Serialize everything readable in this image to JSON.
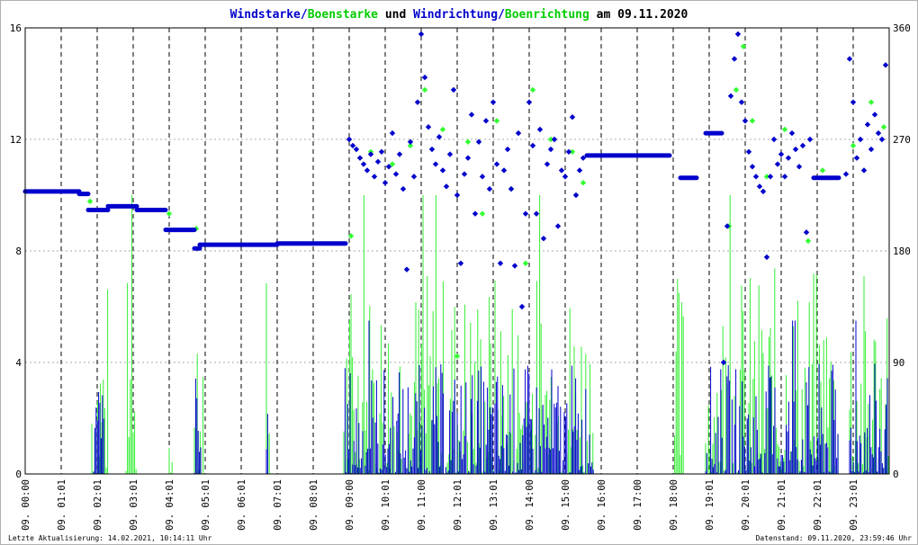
{
  "chart_data": {
    "type": "line",
    "title_parts": [
      {
        "text": "Windstarke",
        "color": "#0000cc"
      },
      {
        "text": "/",
        "color": "#0000cc"
      },
      {
        "text": "Boenstarke",
        "color": "#00cc00"
      },
      {
        "text": " und ",
        "color": "#000000"
      },
      {
        "text": "Windrichtung",
        "color": "#0000cc"
      },
      {
        "text": "/",
        "color": "#0000cc"
      },
      {
        "text": "Boenrichtung",
        "color": "#00cc00"
      },
      {
        "text": " am 09.11.2020",
        "color": "#000000"
      }
    ],
    "x_tick_labels": [
      "09. 00:00",
      "09. 01:01",
      "09. 02:01",
      "09. 03:01",
      "09. 04:01",
      "09. 05:01",
      "09. 06:01",
      "09. 07:01",
      "09. 08:01",
      "09. 09:00",
      "09. 10:01",
      "09. 11:00",
      "09. 12:01",
      "09. 13:01",
      "09. 14:00",
      "09. 15:00",
      "09. 16:00",
      "09. 17:00",
      "09. 18:00",
      "09. 19:01",
      "09. 20:01",
      "09. 21:01",
      "09. 22:01",
      "09. 23:01"
    ],
    "x_range_hours": [
      0,
      24
    ],
    "y_left": {
      "ticks": [
        "0",
        "4",
        "8",
        "12",
        "16"
      ],
      "range": [
        0,
        16
      ]
    },
    "y_right": {
      "ticks": [
        "0",
        "90",
        "180",
        "270",
        "360"
      ],
      "range": [
        0,
        360
      ]
    },
    "grid": {
      "horizontal": "dotted",
      "vertical": "dashed"
    },
    "series": [
      {
        "kind": "direction",
        "color": "#0000cc",
        "axis": "right",
        "segments": [
          {
            "from_h": 0.0,
            "to_h": 1.5,
            "value": 228
          },
          {
            "from_h": 1.5,
            "to_h": 1.75,
            "value": 226
          },
          {
            "from_h": 1.75,
            "to_h": 2.3,
            "value": 213
          },
          {
            "from_h": 2.3,
            "to_h": 3.1,
            "value": 216
          },
          {
            "from_h": 3.1,
            "to_h": 3.9,
            "value": 213
          },
          {
            "from_h": 3.9,
            "to_h": 4.7,
            "value": 197
          },
          {
            "from_h": 4.7,
            "to_h": 4.85,
            "value": 182
          },
          {
            "from_h": 4.85,
            "to_h": 7.0,
            "value": 185
          },
          {
            "from_h": 7.0,
            "to_h": 8.9,
            "value": 186
          },
          {
            "from_h": 15.6,
            "to_h": 17.9,
            "value": 257
          },
          {
            "from_h": 18.2,
            "to_h": 18.65,
            "value": 239
          },
          {
            "from_h": 18.9,
            "to_h": 19.35,
            "value": 275
          },
          {
            "from_h": 21.9,
            "to_h": 22.6,
            "value": 239
          }
        ],
        "scatter": [
          {
            "h": 9.0,
            "value": 270
          },
          {
            "h": 9.1,
            "value": 265
          },
          {
            "h": 9.2,
            "value": 262
          },
          {
            "h": 9.3,
            "value": 255
          },
          {
            "h": 9.4,
            "value": 250
          },
          {
            "h": 9.5,
            "value": 245
          },
          {
            "h": 9.6,
            "value": 258
          },
          {
            "h": 9.7,
            "value": 240
          },
          {
            "h": 9.8,
            "value": 252
          },
          {
            "h": 9.9,
            "value": 260
          },
          {
            "h": 10.0,
            "value": 235
          },
          {
            "h": 10.1,
            "value": 248
          },
          {
            "h": 10.2,
            "value": 275
          },
          {
            "h": 10.3,
            "value": 242
          },
          {
            "h": 10.4,
            "value": 258
          },
          {
            "h": 10.5,
            "value": 230
          },
          {
            "h": 10.6,
            "value": 165
          },
          {
            "h": 10.7,
            "value": 268
          },
          {
            "h": 10.8,
            "value": 240
          },
          {
            "h": 10.9,
            "value": 300
          },
          {
            "h": 11.0,
            "value": 355
          },
          {
            "h": 11.1,
            "value": 320
          },
          {
            "h": 11.2,
            "value": 280
          },
          {
            "h": 11.3,
            "value": 262
          },
          {
            "h": 11.4,
            "value": 250
          },
          {
            "h": 11.5,
            "value": 272
          },
          {
            "h": 11.6,
            "value": 245
          },
          {
            "h": 11.7,
            "value": 232
          },
          {
            "h": 11.8,
            "value": 258
          },
          {
            "h": 11.9,
            "value": 310
          },
          {
            "h": 12.0,
            "value": 225
          },
          {
            "h": 12.1,
            "value": 170
          },
          {
            "h": 12.2,
            "value": 242
          },
          {
            "h": 12.3,
            "value": 255
          },
          {
            "h": 12.4,
            "value": 290
          },
          {
            "h": 12.5,
            "value": 210
          },
          {
            "h": 12.6,
            "value": 268
          },
          {
            "h": 12.7,
            "value": 240
          },
          {
            "h": 12.8,
            "value": 285
          },
          {
            "h": 12.9,
            "value": 230
          },
          {
            "h": 13.0,
            "value": 300
          },
          {
            "h": 13.1,
            "value": 250
          },
          {
            "h": 13.2,
            "value": 170
          },
          {
            "h": 13.3,
            "value": 245
          },
          {
            "h": 13.4,
            "value": 262
          },
          {
            "h": 13.5,
            "value": 230
          },
          {
            "h": 13.6,
            "value": 168
          },
          {
            "h": 13.7,
            "value": 275
          },
          {
            "h": 13.8,
            "value": 135
          },
          {
            "h": 13.9,
            "value": 210
          },
          {
            "h": 14.0,
            "value": 300
          },
          {
            "h": 14.1,
            "value": 265
          },
          {
            "h": 14.2,
            "value": 210
          },
          {
            "h": 14.3,
            "value": 278
          },
          {
            "h": 14.4,
            "value": 190
          },
          {
            "h": 14.5,
            "value": 250
          },
          {
            "h": 14.6,
            "value": 262
          },
          {
            "h": 14.7,
            "value": 270
          },
          {
            "h": 14.8,
            "value": 200
          },
          {
            "h": 14.9,
            "value": 245
          },
          {
            "h": 15.0,
            "value": 240
          },
          {
            "h": 15.1,
            "value": 260
          },
          {
            "h": 15.2,
            "value": 288
          },
          {
            "h": 15.3,
            "value": 225
          },
          {
            "h": 15.4,
            "value": 245
          },
          {
            "h": 15.5,
            "value": 255
          },
          {
            "h": 19.4,
            "value": 90
          },
          {
            "h": 19.5,
            "value": 200
          },
          {
            "h": 19.6,
            "value": 305
          },
          {
            "h": 19.7,
            "value": 335
          },
          {
            "h": 19.8,
            "value": 355
          },
          {
            "h": 19.9,
            "value": 300
          },
          {
            "h": 20.0,
            "value": 285
          },
          {
            "h": 20.1,
            "value": 260
          },
          {
            "h": 20.2,
            "value": 248
          },
          {
            "h": 20.3,
            "value": 240
          },
          {
            "h": 20.4,
            "value": 232
          },
          {
            "h": 20.5,
            "value": 228
          },
          {
            "h": 20.6,
            "value": 175
          },
          {
            "h": 20.7,
            "value": 240
          },
          {
            "h": 20.8,
            "value": 270
          },
          {
            "h": 20.9,
            "value": 250
          },
          {
            "h": 21.0,
            "value": 258
          },
          {
            "h": 21.1,
            "value": 240
          },
          {
            "h": 21.2,
            "value": 255
          },
          {
            "h": 21.3,
            "value": 275
          },
          {
            "h": 21.4,
            "value": 262
          },
          {
            "h": 21.5,
            "value": 248
          },
          {
            "h": 21.6,
            "value": 265
          },
          {
            "h": 21.7,
            "value": 195
          },
          {
            "h": 21.8,
            "value": 270
          },
          {
            "h": 22.8,
            "value": 242
          },
          {
            "h": 22.9,
            "value": 335
          },
          {
            "h": 23.0,
            "value": 300
          },
          {
            "h": 23.1,
            "value": 255
          },
          {
            "h": 23.2,
            "value": 270
          },
          {
            "h": 23.3,
            "value": 245
          },
          {
            "h": 23.4,
            "value": 282
          },
          {
            "h": 23.5,
            "value": 262
          },
          {
            "h": 23.6,
            "value": 290
          },
          {
            "h": 23.7,
            "value": 275
          },
          {
            "h": 23.8,
            "value": 270
          },
          {
            "h": 23.9,
            "value": 330
          }
        ]
      },
      {
        "kind": "gust_direction",
        "color": "#33ff33",
        "axis": "right",
        "scatter": [
          {
            "h": 1.8,
            "value": 220
          },
          {
            "h": 4.0,
            "value": 210
          },
          {
            "h": 4.75,
            "value": 198
          },
          {
            "h": 9.05,
            "value": 192
          },
          {
            "h": 9.6,
            "value": 260
          },
          {
            "h": 10.2,
            "value": 250
          },
          {
            "h": 10.7,
            "value": 265
          },
          {
            "h": 11.1,
            "value": 310
          },
          {
            "h": 11.6,
            "value": 278
          },
          {
            "h": 12.0,
            "value": 95
          },
          {
            "h": 12.3,
            "value": 268
          },
          {
            "h": 12.7,
            "value": 210
          },
          {
            "h": 13.1,
            "value": 285
          },
          {
            "h": 13.5,
            "value": 230
          },
          {
            "h": 13.9,
            "value": 170
          },
          {
            "h": 14.1,
            "value": 310
          },
          {
            "h": 14.6,
            "value": 270
          },
          {
            "h": 15.2,
            "value": 260
          },
          {
            "h": 15.5,
            "value": 235
          },
          {
            "h": 19.55,
            "value": 200
          },
          {
            "h": 19.75,
            "value": 310
          },
          {
            "h": 19.95,
            "value": 345
          },
          {
            "h": 20.2,
            "value": 285
          },
          {
            "h": 20.6,
            "value": 240
          },
          {
            "h": 21.1,
            "value": 278
          },
          {
            "h": 21.75,
            "value": 188
          },
          {
            "h": 22.15,
            "value": 245
          },
          {
            "h": 23.0,
            "value": 265
          },
          {
            "h": 23.5,
            "value": 300
          },
          {
            "h": 23.85,
            "value": 280
          }
        ]
      },
      {
        "kind": "gust_speed",
        "color": "#33ee33",
        "axis": "left",
        "active_periods_h": [
          [
            1.85,
            2.3
          ],
          [
            2.8,
            3.1
          ],
          [
            4.0,
            4.1
          ],
          [
            4.7,
            4.95
          ],
          [
            6.7,
            6.8
          ],
          [
            8.85,
            15.8
          ],
          [
            18.0,
            18.3
          ],
          [
            18.9,
            22.6
          ],
          [
            22.9,
            24.0
          ]
        ],
        "typical_range": [
          0,
          7.5
        ],
        "peak": 10.0
      },
      {
        "kind": "wind_speed",
        "color": "#0000cc",
        "axis": "left",
        "active_periods_h": [
          [
            1.9,
            2.2
          ],
          [
            4.7,
            4.9
          ],
          [
            6.7,
            6.75
          ],
          [
            8.85,
            15.8
          ],
          [
            18.9,
            22.6
          ],
          [
            22.9,
            24.0
          ]
        ],
        "typical_range": [
          0,
          4
        ],
        "peak": 5.5
      }
    ]
  },
  "footer": {
    "last_update": "Letzte Aktualisierung: 14.02.2021, 10:14:11 Uhr",
    "data_state": "Datenstand: 09.11.2020, 23:59:46 Uhr"
  }
}
